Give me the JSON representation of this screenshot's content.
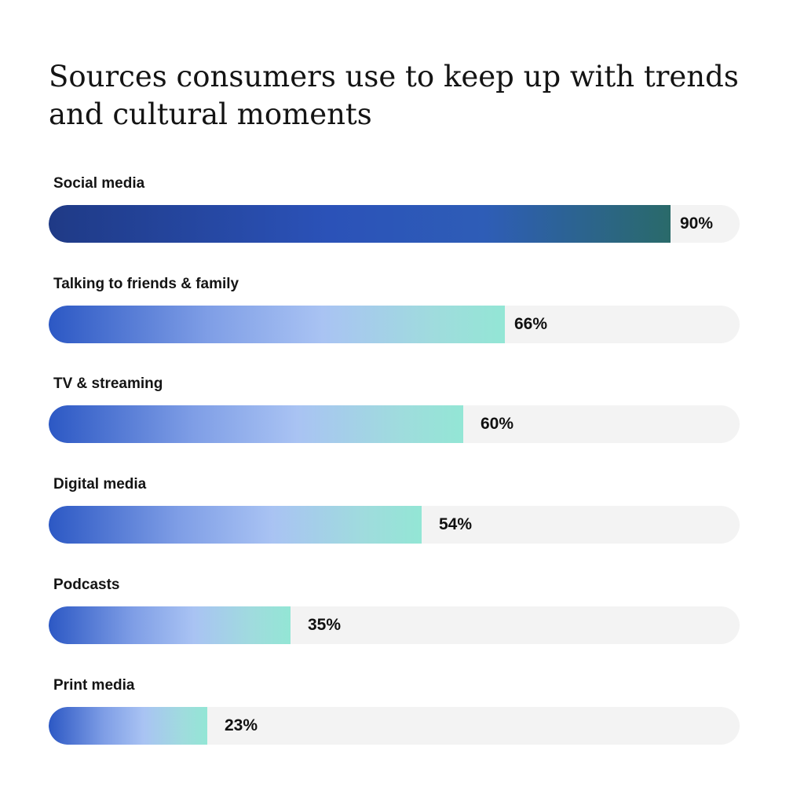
{
  "chart_data": {
    "type": "bar",
    "orientation": "horizontal",
    "title": "Sources consumers use to keep up with trends and cultural moments",
    "categories": [
      "Social media",
      "Talking to friends & family",
      "TV & streaming",
      "Digital media",
      "Podcasts",
      "Print media"
    ],
    "values": [
      90,
      66,
      60,
      54,
      35,
      23
    ],
    "value_labels": [
      "90%",
      "66%",
      "60%",
      "54%",
      "35%",
      "23%"
    ],
    "xlim": [
      0,
      100
    ],
    "unit": "%",
    "grid": false,
    "legend": "none",
    "colors": {
      "highlight_start": "#1f3a86",
      "highlight_end": "#2a6a6a",
      "bar_start": "#2c58c4",
      "bar_end": "#93e6d5",
      "track": "#f3f3f3"
    }
  }
}
